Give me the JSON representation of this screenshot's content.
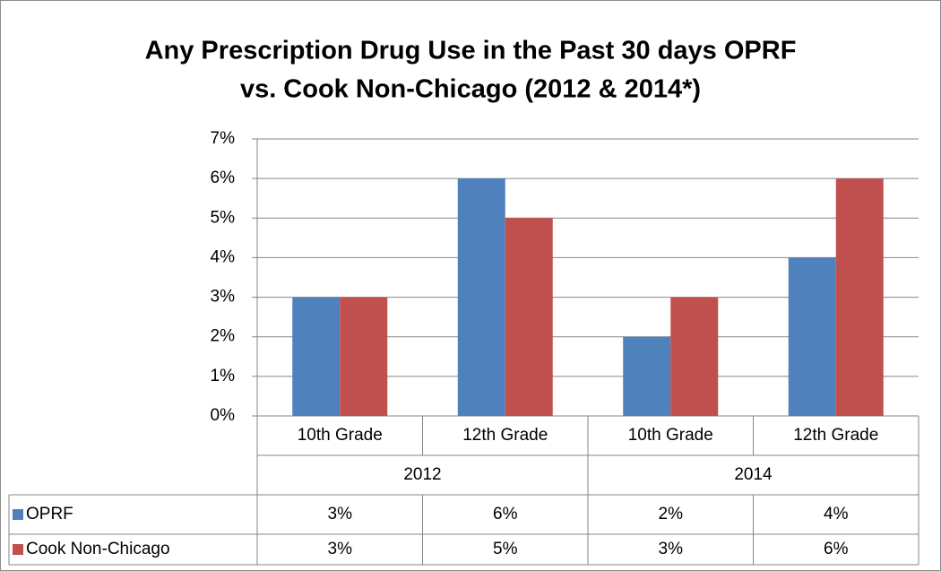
{
  "chart_data": {
    "type": "bar",
    "title": [
      "Any Prescription Drug Use in the Past 30 days OPRF",
      "vs. Cook Non-Chicago (2012 & 2014*)"
    ],
    "categories": [
      "10th Grade",
      "12th Grade",
      "10th Grade",
      "12th Grade"
    ],
    "category_groups": [
      "2012",
      "2014"
    ],
    "series": [
      {
        "name": "OPRF",
        "color": "#4f81bd",
        "values": [
          3,
          6,
          2,
          4
        ],
        "value_labels": [
          "3%",
          "6%",
          "2%",
          "4%"
        ]
      },
      {
        "name": "Cook Non-Chicago",
        "color": "#c0504d",
        "values": [
          3,
          5,
          3,
          6
        ],
        "value_labels": [
          "3%",
          "5%",
          "3%",
          "6%"
        ]
      }
    ],
    "ylim": [
      0,
      7
    ],
    "yticks": [
      {
        "value": 0,
        "label": "0%"
      },
      {
        "value": 1,
        "label": "1%"
      },
      {
        "value": 2,
        "label": "2%"
      },
      {
        "value": 3,
        "label": "3%"
      },
      {
        "value": 4,
        "label": "4%"
      },
      {
        "value": 5,
        "label": "5%"
      },
      {
        "value": 6,
        "label": "6%"
      },
      {
        "value": 7,
        "label": "7%"
      }
    ],
    "grid": true,
    "data_table": true
  }
}
